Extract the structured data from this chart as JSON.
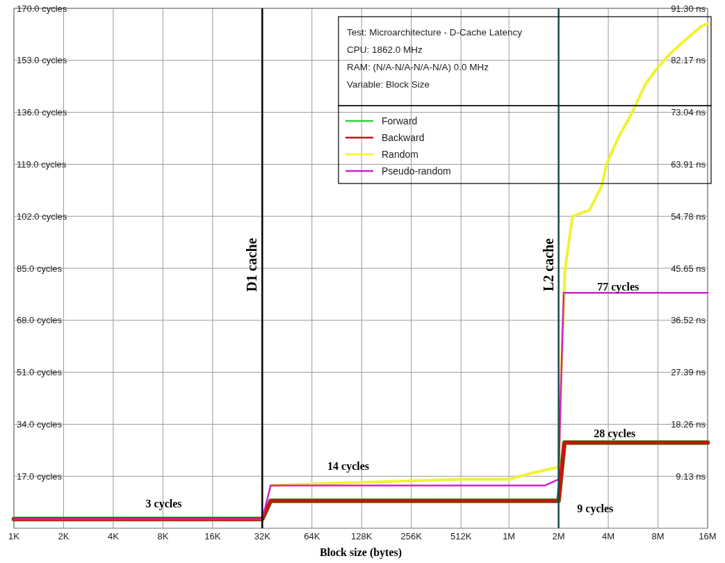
{
  "chart_data": {
    "type": "line",
    "xlabel": "Block size (bytes)",
    "log": "x",
    "xlim": [
      1000,
      16000000
    ],
    "xticks": [
      {
        "value": 1000,
        "label": "1K"
      },
      {
        "value": 2000,
        "label": "2K"
      },
      {
        "value": 4000,
        "label": "4K"
      },
      {
        "value": 8000,
        "label": "8K"
      },
      {
        "value": 16000,
        "label": "16K"
      },
      {
        "value": 32000,
        "label": "32K"
      },
      {
        "value": 64000,
        "label": "64K"
      },
      {
        "value": 128000,
        "label": "128K"
      },
      {
        "value": 256000,
        "label": "256K"
      },
      {
        "value": 512000,
        "label": "512K"
      },
      {
        "value": 1000000,
        "label": "1M"
      },
      {
        "value": 2000000,
        "label": "2M"
      },
      {
        "value": 4000000,
        "label": "4M"
      },
      {
        "value": 8000000,
        "label": "8M"
      },
      {
        "value": 16000000,
        "label": "16M"
      }
    ],
    "ylim": [
      0,
      170
    ],
    "yticks": [
      {
        "value": 17,
        "label": "17.0 cycles"
      },
      {
        "value": 34,
        "label": "34.0 cycles"
      },
      {
        "value": 51,
        "label": "51.0 cycles"
      },
      {
        "value": 68,
        "label": "68.0 cycles"
      },
      {
        "value": 85,
        "label": "85.0 cycles"
      },
      {
        "value": 102,
        "label": "102.0 cycles"
      },
      {
        "value": 119,
        "label": "119.0 cycles"
      },
      {
        "value": 136,
        "label": "136.0 cycles"
      },
      {
        "value": 153,
        "label": "153.0 cycles"
      },
      {
        "value": 170,
        "label": "170.0 cycles"
      }
    ],
    "y2lim": [
      0,
      91.3
    ],
    "y2ticks": [
      {
        "value": 9.13,
        "label": "9.13 ns"
      },
      {
        "value": 18.26,
        "label": "18.26 ns"
      },
      {
        "value": 27.39,
        "label": "27.39 ns"
      },
      {
        "value": 36.52,
        "label": "36.52 ns"
      },
      {
        "value": 45.65,
        "label": "45.65 ns"
      },
      {
        "value": 54.78,
        "label": "54.78 ns"
      },
      {
        "value": 63.91,
        "label": "63.91 ns"
      },
      {
        "value": 73.04,
        "label": "73.04 ns"
      },
      {
        "value": 82.17,
        "label": "82.17 ns"
      },
      {
        "value": 91.3,
        "label": "91.30 ns"
      }
    ],
    "grid": true,
    "legend": "top right",
    "series": [
      {
        "name": "Forward",
        "color": "#33cc33",
        "x": [
          1000,
          32000,
          36000,
          2000000,
          2170000,
          16000000
        ],
        "values": [
          3,
          3,
          9,
          9,
          28,
          28
        ]
      },
      {
        "name": "Backward",
        "color": "#cc1111",
        "x": [
          1000,
          32000,
          36000,
          2000000,
          2170000,
          16000000
        ],
        "values": [
          3,
          3,
          9,
          9,
          28,
          28
        ]
      },
      {
        "name": "Random",
        "color": "#f2f230",
        "x": [
          36000,
          64000,
          128000,
          256000,
          512000,
          1000000,
          1367000,
          2000000,
          2100000,
          2190000,
          2432000,
          3076000,
          3652000,
          3896000,
          4629000,
          5586000,
          6689000,
          7783000,
          9395000,
          11914000,
          14531000,
          16000000
        ],
        "values": [
          14,
          14.5,
          15,
          15.5,
          16,
          16,
          18,
          20,
          60,
          85,
          102,
          104,
          112,
          119,
          128,
          136,
          145,
          150,
          155,
          160,
          164,
          165
        ]
      },
      {
        "name": "Pseudo-random",
        "color": "#cc22cc",
        "x": [
          1000,
          32000,
          36000,
          1660000,
          2000000,
          2051000,
          2148000,
          16000000
        ],
        "values": [
          3,
          3,
          14,
          14,
          16,
          40,
          77,
          77
        ]
      }
    ],
    "ref_lines": [
      {
        "axis": "x",
        "value": 32000,
        "label": "D1 cache",
        "color": "#000000"
      },
      {
        "axis": "x",
        "value": 2000000,
        "label": "L2 cache",
        "color": "#1a4848"
      }
    ],
    "annotations": [
      "Test: Microarchitecture - D-Cache Latency",
      "CPU: 1862.0 MHz",
      "RAM:  (N/A-N/A-N/A-N/A) 0.0 MHz",
      "Variable: Block Size",
      "3 cycles",
      "14 cycles",
      "9 cycles",
      "28 cycles",
      "77 cycles"
    ]
  }
}
